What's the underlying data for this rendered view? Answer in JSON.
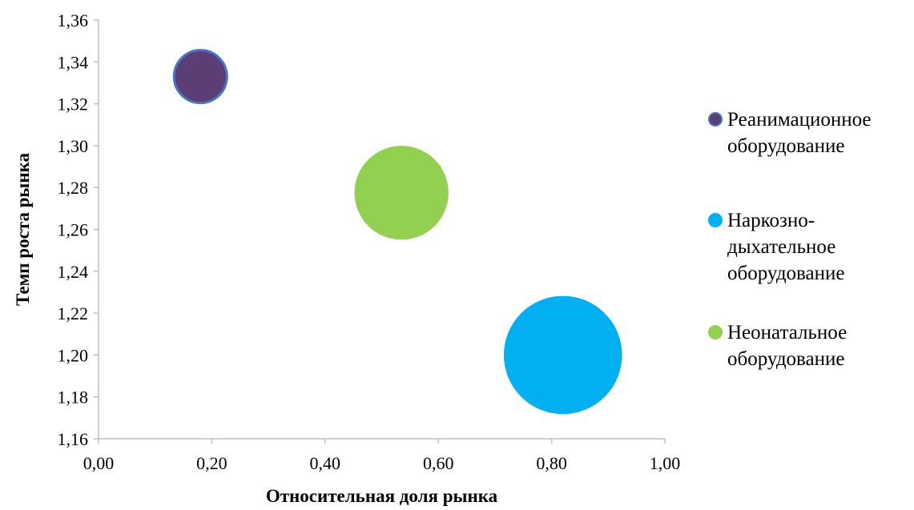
{
  "chart_data": {
    "type": "bubble",
    "xlabel": "Относительная доля рынка",
    "ylabel": "Темп роста рынка",
    "xlim": [
      0,
      1
    ],
    "ylim": [
      1.16,
      1.36
    ],
    "x_ticks": [
      "0,00",
      "0,20",
      "0,40",
      "0,60",
      "0,80",
      "1,00"
    ],
    "y_ticks": [
      "1,16",
      "1,18",
      "1,20",
      "1,22",
      "1,24",
      "1,26",
      "1,28",
      "1,30",
      "1,32",
      "1,34",
      "1,36"
    ],
    "grid": false,
    "legend_position": "right",
    "series": [
      {
        "name": [
          "Реанимационное",
          "оборудование"
        ],
        "x": 0.18,
        "y": 1.333,
        "size": 1,
        "color": "#5b3f74",
        "border": "#4a74c4"
      },
      {
        "name": [
          "Наркозно-",
          "дыхательное",
          "оборудование"
        ],
        "x": 0.82,
        "y": 1.2,
        "size": 4.8,
        "color": "#00b0f0",
        "border": "#00b0f0"
      },
      {
        "name": [
          "Неонатальное",
          "оборудование"
        ],
        "x": 0.535,
        "y": 1.2775,
        "size": 3.0,
        "color": "#92d050",
        "border": "#92d050"
      }
    ]
  }
}
